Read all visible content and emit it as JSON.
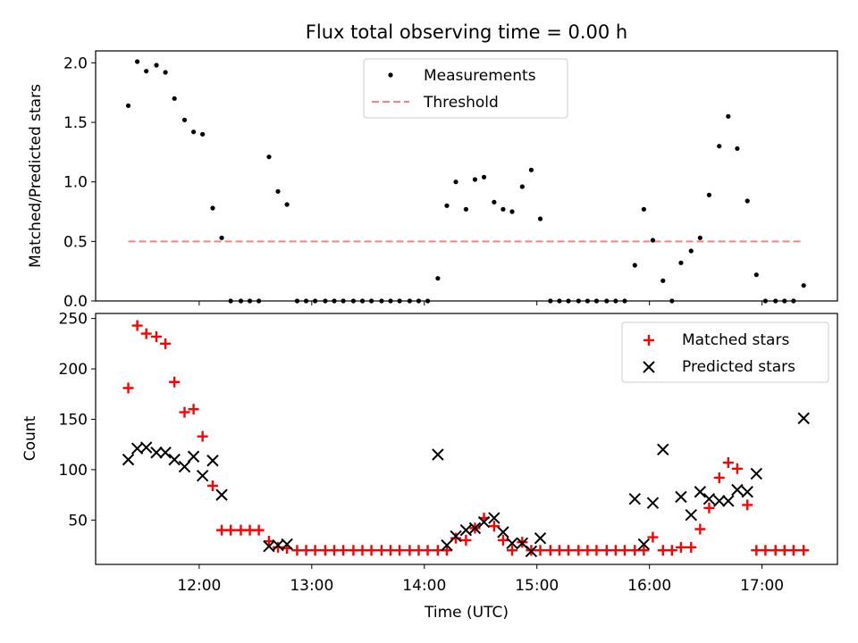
{
  "title": "Flux total observing time = 0.00 h",
  "xlabel": "Time (UTC)",
  "x_ticks": [
    "12:00",
    "13:00",
    "14:00",
    "15:00",
    "16:00",
    "17:00"
  ],
  "colors": {
    "measurements": "#000000",
    "threshold": "#ff8080",
    "matched": "#ff0000",
    "predicted": "#000000"
  },
  "chart_data": [
    {
      "type": "scatter",
      "panel": "top",
      "title": "Flux total observing time = 0.00 h",
      "xlabel": "",
      "ylabel": "Matched/Predicted stars",
      "x_unit": "hours UTC",
      "xlim": [
        11.08,
        17.67
      ],
      "ylim": [
        0,
        2.1
      ],
      "y_ticks": [
        0.0,
        0.5,
        1.0,
        1.5,
        2.0
      ],
      "y_tick_labels": [
        "0.0",
        "0.5",
        "1.0",
        "1.5",
        "2.0"
      ],
      "grid": false,
      "legend_position": "top-center",
      "series": [
        {
          "name": "Measurements",
          "marker": "dot",
          "points": [
            [
              11.37,
              1.64
            ],
            [
              11.45,
              2.01
            ],
            [
              11.53,
              1.93
            ],
            [
              11.62,
              1.98
            ],
            [
              11.7,
              1.92
            ],
            [
              11.78,
              1.7
            ],
            [
              11.87,
              1.52
            ],
            [
              11.95,
              1.42
            ],
            [
              12.03,
              1.4
            ],
            [
              12.12,
              0.78
            ],
            [
              12.2,
              0.53
            ],
            [
              12.28,
              0
            ],
            [
              12.37,
              0
            ],
            [
              12.45,
              0
            ],
            [
              12.53,
              0
            ],
            [
              12.62,
              1.21
            ],
            [
              12.7,
              0.92
            ],
            [
              12.78,
              0.81
            ],
            [
              12.87,
              0
            ],
            [
              12.95,
              0
            ],
            [
              13.03,
              0
            ],
            [
              13.12,
              0
            ],
            [
              13.2,
              0
            ],
            [
              13.28,
              0
            ],
            [
              13.37,
              0
            ],
            [
              13.45,
              0
            ],
            [
              13.53,
              0
            ],
            [
              13.62,
              0
            ],
            [
              13.7,
              0
            ],
            [
              13.78,
              0
            ],
            [
              13.87,
              0
            ],
            [
              13.95,
              0
            ],
            [
              14.03,
              0
            ],
            [
              14.12,
              0.19
            ],
            [
              14.2,
              0.8
            ],
            [
              14.28,
              1.0
            ],
            [
              14.37,
              0.77
            ],
            [
              14.45,
              1.02
            ],
            [
              14.53,
              1.04
            ],
            [
              14.62,
              0.83
            ],
            [
              14.7,
              0.77
            ],
            [
              14.78,
              0.75
            ],
            [
              14.87,
              0.96
            ],
            [
              14.95,
              1.1
            ],
            [
              15.03,
              0.69
            ],
            [
              15.12,
              0
            ],
            [
              15.2,
              0
            ],
            [
              15.28,
              0
            ],
            [
              15.37,
              0
            ],
            [
              15.45,
              0
            ],
            [
              15.53,
              0
            ],
            [
              15.62,
              0
            ],
            [
              15.7,
              0
            ],
            [
              15.78,
              0
            ],
            [
              15.87,
              0.3
            ],
            [
              15.95,
              0.77
            ],
            [
              16.03,
              0.51
            ],
            [
              16.12,
              0.17
            ],
            [
              16.2,
              0
            ],
            [
              16.28,
              0.32
            ],
            [
              16.37,
              0.42
            ],
            [
              16.45,
              0.53
            ],
            [
              16.53,
              0.89
            ],
            [
              16.62,
              1.3
            ],
            [
              16.7,
              1.55
            ],
            [
              16.78,
              1.28
            ],
            [
              16.87,
              0.84
            ],
            [
              16.95,
              0.22
            ],
            [
              17.03,
              0
            ],
            [
              17.12,
              0
            ],
            [
              17.2,
              0
            ],
            [
              17.28,
              0
            ],
            [
              17.37,
              0.13
            ]
          ]
        },
        {
          "name": "Threshold",
          "style": "dashed",
          "x": [
            11.37,
            17.37
          ],
          "y": [
            0.5,
            0.5
          ]
        }
      ]
    },
    {
      "type": "scatter",
      "panel": "bottom",
      "xlabel": "Time (UTC)",
      "ylabel": "Count",
      "x_unit": "hours UTC",
      "xlim": [
        11.08,
        17.67
      ],
      "ylim": [
        6,
        255
      ],
      "y_ticks": [
        50,
        100,
        150,
        200,
        250
      ],
      "y_tick_labels": [
        "50",
        "100",
        "150",
        "200",
        "250"
      ],
      "grid": false,
      "legend_position": "top-right",
      "series": [
        {
          "name": "Matched stars",
          "marker": "plus",
          "points": [
            [
              11.37,
              181
            ],
            [
              11.45,
              243
            ],
            [
              11.53,
              235
            ],
            [
              11.62,
              232
            ],
            [
              11.7,
              225
            ],
            [
              11.78,
              187
            ],
            [
              11.87,
              157
            ],
            [
              11.95,
              160
            ],
            [
              12.03,
              133
            ],
            [
              12.12,
              84
            ],
            [
              12.2,
              40
            ],
            [
              12.28,
              40
            ],
            [
              12.37,
              40
            ],
            [
              12.45,
              40
            ],
            [
              12.53,
              40
            ],
            [
              12.62,
              29
            ],
            [
              12.7,
              23
            ],
            [
              12.78,
              22
            ],
            [
              12.87,
              20
            ],
            [
              12.95,
              20
            ],
            [
              13.03,
              20
            ],
            [
              13.12,
              20
            ],
            [
              13.2,
              20
            ],
            [
              13.28,
              20
            ],
            [
              13.37,
              20
            ],
            [
              13.45,
              20
            ],
            [
              13.53,
              20
            ],
            [
              13.62,
              20
            ],
            [
              13.7,
              20
            ],
            [
              13.78,
              20
            ],
            [
              13.87,
              20
            ],
            [
              13.95,
              20
            ],
            [
              14.03,
              20
            ],
            [
              14.12,
              20
            ],
            [
              14.2,
              20
            ],
            [
              14.28,
              32
            ],
            [
              14.37,
              30
            ],
            [
              14.45,
              42
            ],
            [
              14.53,
              52
            ],
            [
              14.62,
              44
            ],
            [
              14.7,
              30
            ],
            [
              14.78,
              20
            ],
            [
              14.87,
              28
            ],
            [
              14.95,
              20
            ],
            [
              15.03,
              20
            ],
            [
              15.12,
              20
            ],
            [
              15.2,
              20
            ],
            [
              15.28,
              20
            ],
            [
              15.37,
              20
            ],
            [
              15.45,
              20
            ],
            [
              15.53,
              20
            ],
            [
              15.62,
              20
            ],
            [
              15.7,
              20
            ],
            [
              15.78,
              20
            ],
            [
              15.87,
              20
            ],
            [
              15.95,
              20
            ],
            [
              16.03,
              33
            ],
            [
              16.12,
              20
            ],
            [
              16.2,
              20
            ],
            [
              16.28,
              23
            ],
            [
              16.37,
              23
            ],
            [
              16.45,
              41
            ],
            [
              16.53,
              62
            ],
            [
              16.62,
              92
            ],
            [
              16.7,
              107
            ],
            [
              16.78,
              101
            ],
            [
              16.87,
              65
            ],
            [
              16.95,
              20
            ],
            [
              17.03,
              20
            ],
            [
              17.12,
              20
            ],
            [
              17.2,
              20
            ],
            [
              17.28,
              20
            ],
            [
              17.37,
              20
            ]
          ]
        },
        {
          "name": "Predicted stars",
          "marker": "cross",
          "points": [
            [
              11.37,
              110
            ],
            [
              11.45,
              121
            ],
            [
              11.53,
              122
            ],
            [
              11.62,
              117
            ],
            [
              11.7,
              117
            ],
            [
              11.78,
              110
            ],
            [
              11.87,
              103
            ],
            [
              11.95,
              113
            ],
            [
              12.03,
              94
            ],
            [
              12.12,
              109
            ],
            [
              12.2,
              75
            ],
            [
              12.62,
              24
            ],
            [
              12.7,
              25
            ],
            [
              12.78,
              26
            ],
            [
              14.12,
              115
            ],
            [
              14.2,
              25
            ],
            [
              14.28,
              34
            ],
            [
              14.37,
              40
            ],
            [
              14.45,
              42
            ],
            [
              14.53,
              48
            ],
            [
              14.62,
              52
            ],
            [
              14.7,
              38
            ],
            [
              14.78,
              27
            ],
            [
              14.87,
              27
            ],
            [
              14.95,
              19
            ],
            [
              15.03,
              32
            ],
            [
              15.87,
              71
            ],
            [
              15.95,
              26
            ],
            [
              16.03,
              67
            ],
            [
              16.12,
              120
            ],
            [
              16.28,
              73
            ],
            [
              16.37,
              55
            ],
            [
              16.45,
              78
            ],
            [
              16.53,
              71
            ],
            [
              16.62,
              69
            ],
            [
              16.7,
              69
            ],
            [
              16.78,
              80
            ],
            [
              16.87,
              78
            ],
            [
              16.95,
              96
            ],
            [
              17.37,
              151
            ]
          ]
        }
      ]
    }
  ]
}
